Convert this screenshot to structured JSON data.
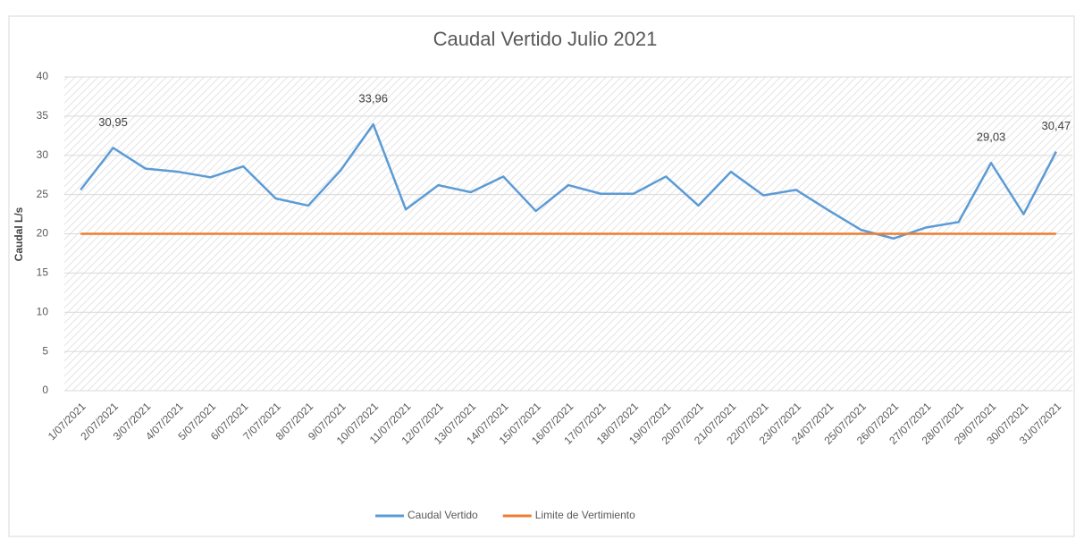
{
  "chart_data": {
    "type": "line",
    "title": "Caudal Vertido Julio 2021",
    "y_label": "Caudal L/s",
    "categories": [
      "1/07/2021",
      "2/07/2021",
      "3/07/2021",
      "4/07/2021",
      "5/07/2021",
      "6/07/2021",
      "7/07/2021",
      "8/07/2021",
      "9/07/2021",
      "10/07/2021",
      "11/07/2021",
      "12/07/2021",
      "13/07/2021",
      "14/07/2021",
      "15/07/2021",
      "16/07/2021",
      "17/07/2021",
      "18/07/2021",
      "19/07/2021",
      "20/07/2021",
      "21/07/2021",
      "22/07/2021",
      "23/07/2021",
      "24/07/2021",
      "25/07/2021",
      "26/07/2021",
      "27/07/2021",
      "28/07/2021",
      "29/07/2021",
      "30/07/2021",
      "31/07/2021"
    ],
    "series": [
      {
        "name": "Caudal Vertido",
        "color": "#5b9bd5",
        "values": [
          25.6,
          30.95,
          28.3,
          27.9,
          27.2,
          28.6,
          24.5,
          23.6,
          28.1,
          33.96,
          23.1,
          26.2,
          25.3,
          27.3,
          22.9,
          26.2,
          25.1,
          25.1,
          27.3,
          23.6,
          27.9,
          24.9,
          25.6,
          23.0,
          20.5,
          19.4,
          20.8,
          21.5,
          29.03,
          22.5,
          30.47
        ],
        "value_labels": [
          null,
          "30,95",
          null,
          null,
          null,
          null,
          null,
          null,
          null,
          "33,96",
          null,
          null,
          null,
          null,
          null,
          null,
          null,
          null,
          null,
          null,
          null,
          null,
          null,
          null,
          null,
          null,
          null,
          null,
          "29,03",
          null,
          "30,47"
        ]
      },
      {
        "name": "Limite de Vertimiento",
        "color": "#ed7d31",
        "values": [
          20,
          20,
          20,
          20,
          20,
          20,
          20,
          20,
          20,
          20,
          20,
          20,
          20,
          20,
          20,
          20,
          20,
          20,
          20,
          20,
          20,
          20,
          20,
          20,
          20,
          20,
          20,
          20,
          20,
          20,
          20
        ]
      }
    ],
    "ylim": [
      0,
      40
    ],
    "yticks": [
      0,
      5,
      10,
      15,
      20,
      25,
      30,
      35,
      40
    ],
    "grid": true,
    "legend": "bottom"
  }
}
